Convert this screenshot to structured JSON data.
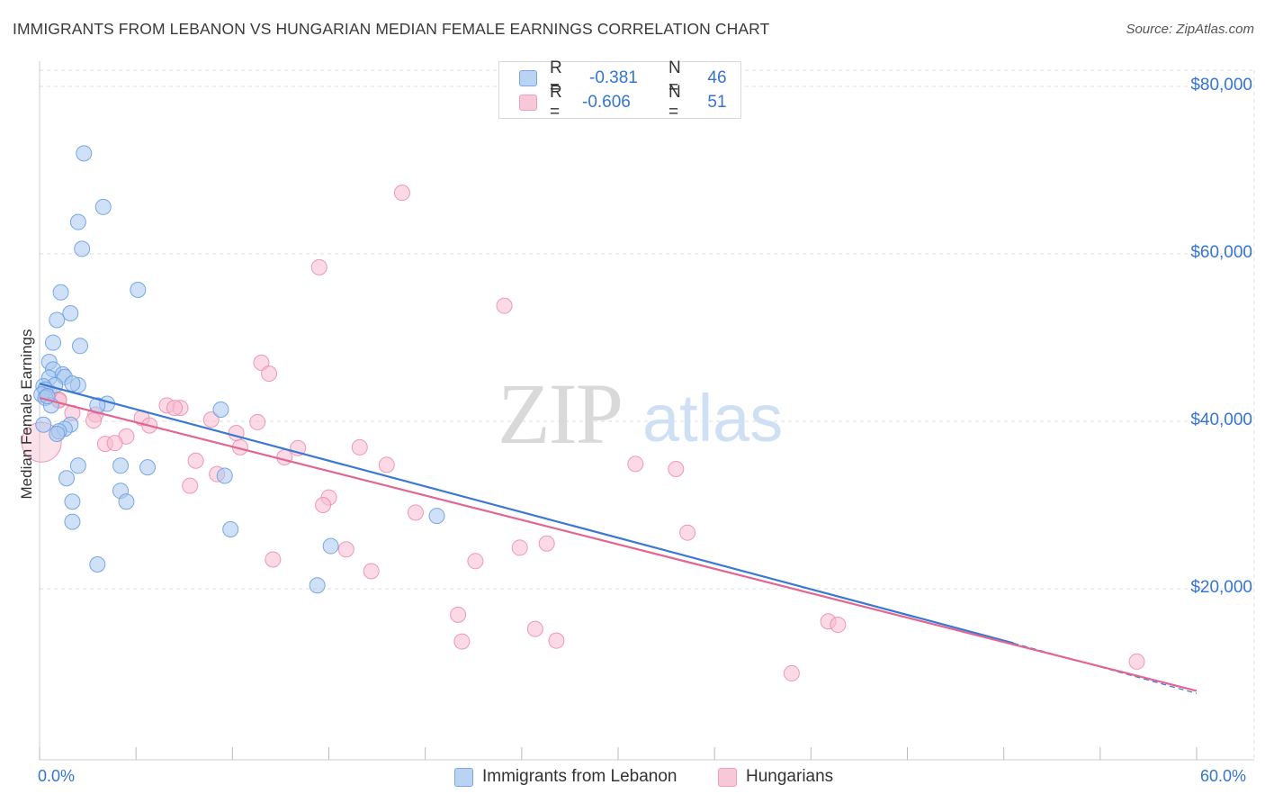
{
  "header": {
    "title": "IMMIGRANTS FROM LEBANON VS HUNGARIAN MEDIAN FEMALE EARNINGS CORRELATION CHART",
    "source": "Source: ZipAtlas.com"
  },
  "watermark": {
    "zip": "ZIP",
    "atlas": "atlas"
  },
  "stats_legend": [
    {
      "r_label": "R =",
      "r_value": "-0.381",
      "n_label": "N =",
      "n_value": "46"
    },
    {
      "r_label": "R =",
      "r_value": "-0.606",
      "n_label": "N =",
      "n_value": "51"
    }
  ],
  "colors": {
    "blue_fill": "#a9c8f0",
    "blue_stroke": "#6a9ee0",
    "blue_line": "#3a78d4",
    "pink_fill": "#f7bcd0",
    "pink_stroke": "#ec8fae",
    "pink_line": "#e26592",
    "accent_text": "#3575d1",
    "grid": "#dddddd"
  },
  "chart_data": {
    "type": "scatter",
    "title": "IMMIGRANTS FROM LEBANON VS HUNGARIAN MEDIAN FEMALE EARNINGS CORRELATION CHART",
    "xlabel": "",
    "ylabel": "Median Female Earnings",
    "xlim": [
      0,
      60
    ],
    "ylim": [
      0,
      82000
    ],
    "x_tick_labels": [
      "0.0%",
      "60.0%"
    ],
    "y_ticks": [
      20000,
      40000,
      60000,
      80000
    ],
    "y_tick_labels": [
      "$20,000",
      "$40,000",
      "$60,000",
      "$80,000"
    ],
    "grid": true,
    "legend_position": "bottom",
    "series": [
      {
        "name": "Immigrants from Lebanon",
        "color": "blue",
        "stats": {
          "R": -0.381,
          "N": 46
        },
        "trend": {
          "x": [
            0,
            50.5
          ],
          "y": [
            44500,
            13500
          ],
          "dashed_to": [
            60,
            7500
          ]
        },
        "points": [
          [
            2.3,
            72000
          ],
          [
            3.3,
            65600
          ],
          [
            2.0,
            63800
          ],
          [
            2.2,
            60600
          ],
          [
            5.1,
            55700
          ],
          [
            1.1,
            55400
          ],
          [
            1.6,
            52900
          ],
          [
            0.9,
            52100
          ],
          [
            0.7,
            49400
          ],
          [
            2.1,
            49000
          ],
          [
            0.5,
            47100
          ],
          [
            0.7,
            46200
          ],
          [
            0.5,
            45200
          ],
          [
            1.2,
            45600
          ],
          [
            1.3,
            45300
          ],
          [
            0.8,
            44300
          ],
          [
            2.0,
            44300
          ],
          [
            1.7,
            44500
          ],
          [
            0.2,
            44200
          ],
          [
            0.3,
            43800
          ],
          [
            0.1,
            43200
          ],
          [
            0.3,
            42800
          ],
          [
            0.6,
            41900
          ],
          [
            3.5,
            42100
          ],
          [
            3.0,
            41900
          ],
          [
            9.4,
            41400
          ],
          [
            0.2,
            39600
          ],
          [
            1.6,
            39600
          ],
          [
            1.3,
            39100
          ],
          [
            1.0,
            38800
          ],
          [
            0.9,
            38500
          ],
          [
            2.0,
            34700
          ],
          [
            4.2,
            34700
          ],
          [
            5.6,
            34500
          ],
          [
            9.6,
            33500
          ],
          [
            1.4,
            33200
          ],
          [
            4.2,
            31700
          ],
          [
            1.7,
            30400
          ],
          [
            4.5,
            30400
          ],
          [
            20.6,
            28700
          ],
          [
            9.9,
            27100
          ],
          [
            1.7,
            28000
          ],
          [
            15.1,
            25100
          ],
          [
            3.0,
            22900
          ],
          [
            14.4,
            20400
          ],
          [
            0.4,
            43000
          ]
        ]
      },
      {
        "name": "Hungarians",
        "color": "pink",
        "stats": {
          "R": -0.606,
          "N": 51
        },
        "trend": {
          "x": [
            0,
            60
          ],
          "y": [
            42800,
            7800
          ]
        },
        "points": [
          [
            0.1,
            37500
          ],
          [
            1.0,
            42600
          ],
          [
            1.7,
            41000
          ],
          [
            2.9,
            40800
          ],
          [
            2.8,
            40100
          ],
          [
            6.6,
            41900
          ],
          [
            7.3,
            41600
          ],
          [
            7.0,
            41600
          ],
          [
            5.3,
            40400
          ],
          [
            5.7,
            39500
          ],
          [
            8.9,
            40200
          ],
          [
            3.4,
            37300
          ],
          [
            4.5,
            38200
          ],
          [
            3.9,
            37400
          ],
          [
            10.2,
            38600
          ],
          [
            11.3,
            39900
          ],
          [
            10.4,
            36900
          ],
          [
            13.4,
            36800
          ],
          [
            12.7,
            35700
          ],
          [
            16.6,
            36900
          ],
          [
            8.1,
            35300
          ],
          [
            9.2,
            33700
          ],
          [
            7.8,
            32300
          ],
          [
            18.0,
            34800
          ],
          [
            11.5,
            47000
          ],
          [
            11.9,
            45700
          ],
          [
            14.5,
            58400
          ],
          [
            18.8,
            67300
          ],
          [
            24.1,
            53800
          ],
          [
            15.0,
            30900
          ],
          [
            14.7,
            30000
          ],
          [
            19.5,
            29100
          ],
          [
            30.9,
            34900
          ],
          [
            33.0,
            34300
          ],
          [
            33.6,
            26700
          ],
          [
            15.9,
            24700
          ],
          [
            12.1,
            23500
          ],
          [
            17.2,
            22100
          ],
          [
            22.6,
            23300
          ],
          [
            24.9,
            24900
          ],
          [
            26.3,
            25400
          ],
          [
            21.7,
            16900
          ],
          [
            21.9,
            13700
          ],
          [
            25.7,
            15200
          ],
          [
            26.8,
            13800
          ],
          [
            40.9,
            16100
          ],
          [
            41.4,
            15700
          ],
          [
            39.0,
            9900
          ],
          [
            56.9,
            11300
          ],
          [
            1.0,
            42500
          ],
          [
            0.5,
            43500
          ]
        ]
      }
    ]
  },
  "bottom_legend": [
    {
      "label": "Immigrants from Lebanon"
    },
    {
      "label": "Hungarians"
    }
  ]
}
